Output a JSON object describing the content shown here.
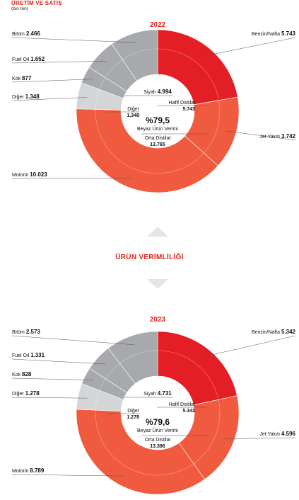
{
  "header": {
    "title": "ÜRETİM VE SATIŞ",
    "subtitle": "(bin ton)"
  },
  "section_title": "ÜRÜN VERİMLİLİĞİ",
  "colors": {
    "red": "#e31e24",
    "orange": "#f05a3e",
    "gray": "#a7a9ac",
    "lightgray": "#d4d5d6",
    "accent": "#e2231a"
  },
  "chart_data": [
    {
      "type": "pie",
      "title": "2022",
      "outer": [
        {
          "name": "Benzin/Nafta",
          "value": 5.743,
          "label": "5.743",
          "color": "red"
        },
        {
          "name": "Jet Yakıtı",
          "value": 3.742,
          "label": "3.742",
          "color": "orange"
        },
        {
          "name": "Motorin",
          "value": 10.023,
          "label": "10.023",
          "color": "orange"
        },
        {
          "name": "Diğer",
          "value": 1.348,
          "label": "1.348",
          "color": "lightgray"
        },
        {
          "name": "Kok",
          "value": 0.877,
          "label": "877",
          "color": "gray"
        },
        {
          "name": "Fuel Oil",
          "value": 1.652,
          "label": "1.652",
          "color": "gray"
        },
        {
          "name": "Bitüm",
          "value": 2.466,
          "label": "2.466",
          "color": "gray"
        }
      ],
      "inner": [
        {
          "name": "Hafif Distilat",
          "value": 5.743,
          "label": "5.743"
        },
        {
          "name": "Orta Distilat",
          "value": 13.765,
          "label": "13.765"
        },
        {
          "name": "Diğer",
          "value": 1.348,
          "label": "1.348"
        },
        {
          "name": "Siyah",
          "value": 4.994,
          "label": "4.994"
        }
      ],
      "center": {
        "value": "%79,5",
        "label": "Beyaz Ürün Verimi"
      }
    },
    {
      "type": "pie",
      "title": "2023",
      "outer": [
        {
          "name": "Benzin/Nafta",
          "value": 5.342,
          "label": "5.342",
          "color": "red"
        },
        {
          "name": "Jet Yakıtı",
          "value": 4.596,
          "label": "4.596",
          "color": "orange"
        },
        {
          "name": "Motorin",
          "value": 8.789,
          "label": "8.789",
          "color": "orange"
        },
        {
          "name": "Diğer",
          "value": 1.278,
          "label": "1.278",
          "color": "lightgray"
        },
        {
          "name": "Kok",
          "value": 0.828,
          "label": "828",
          "color": "gray"
        },
        {
          "name": "Fuel Oil",
          "value": 1.331,
          "label": "1.331",
          "color": "gray"
        },
        {
          "name": "Bitüm",
          "value": 2.573,
          "label": "2.573",
          "color": "gray"
        }
      ],
      "inner": [
        {
          "name": "Hafif Distilat",
          "value": 5.342,
          "label": "5.342"
        },
        {
          "name": "Orta Distilat",
          "value": 13.386,
          "label": "13.386"
        },
        {
          "name": "Diğer",
          "value": 1.278,
          "label": "1.278"
        },
        {
          "name": "Siyah",
          "value": 4.731,
          "label": "4.731"
        }
      ],
      "center": {
        "value": "%79,6",
        "label": "Beyaz Ürün Verimi"
      }
    }
  ]
}
